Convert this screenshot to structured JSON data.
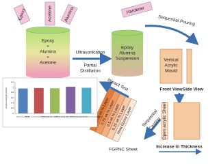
{
  "bottles": [
    "Epoxy",
    "Acetone",
    "Alumina"
  ],
  "beaker1": [
    "Epoxy",
    "+",
    "Alumina",
    "+",
    "Acetone"
  ],
  "step1": {
    "above": "Ultrasonication",
    "below": [
      "Partial",
      "Distillation"
    ]
  },
  "hardener": "Hardener",
  "beaker2": [
    "Epoxy",
    "Alumina",
    "Suspension"
  ],
  "pouring": "Sequential Pouring",
  "mould": [
    "Vertical",
    "Acrylic",
    "Mould"
  ],
  "front_view": "Front View",
  "side_view": "Side View",
  "open_sheet": "Open acrylic Sheet",
  "casting": [
    "Sequential",
    "Casting"
  ],
  "thickness": "Increase in Thickness",
  "layers": [
    "Neat Epoxy Layer",
    "0.25 wt.% Layer",
    "0.5 wt.% Layer",
    "0.75 wt.% Layer",
    "1.00 wt.% Layer"
  ],
  "sheet": "FGPNC Sheet",
  "impact": "Impact Test",
  "chart_data": {
    "type": "bar",
    "y_label": "Impact strength (kJ/m²)",
    "categories": [
      "Neat epoxy (Matrix)",
      "FGPNC (neutral) loaded from epoxy side",
      "FGPNC (sphere) loaded from epoxy side",
      "FGPNC (neutral) loaded from nanocomposite side",
      "FGPNC (sphere) loaded from nanocomposite side"
    ],
    "values": [
      0.95,
      0.97,
      0.96,
      1.02,
      0.98
    ],
    "colors": [
      "#4f81bd",
      "#c0504d",
      "#9bbb59",
      "#8064a2",
      "#4bacc6"
    ],
    "ylim": [
      0,
      1.2
    ],
    "yticks": [
      0.0,
      0.2,
      0.4,
      0.6,
      0.8,
      1.0,
      1.2
    ]
  }
}
